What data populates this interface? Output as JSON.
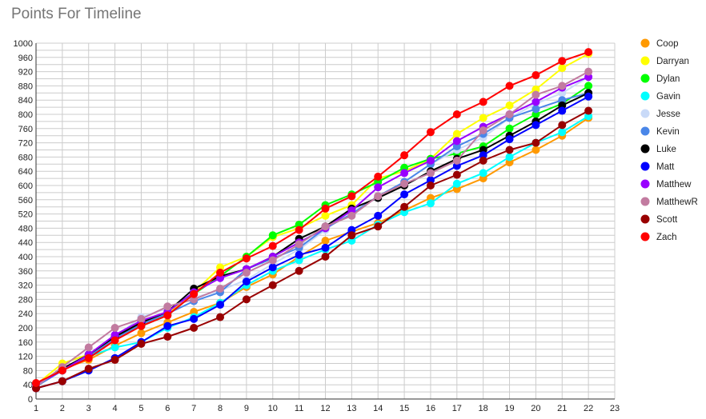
{
  "chart_data": {
    "type": "line",
    "title": "Points For Timeline",
    "xlabel": "",
    "ylabel": "",
    "xlim": [
      1,
      23
    ],
    "ylim": [
      0,
      1000
    ],
    "x_ticks": [
      1,
      2,
      3,
      4,
      5,
      6,
      7,
      8,
      9,
      10,
      11,
      12,
      13,
      14,
      15,
      16,
      17,
      18,
      19,
      20,
      21,
      22,
      23
    ],
    "y_ticks": [
      0,
      20,
      40,
      60,
      80,
      100,
      120,
      140,
      160,
      180,
      200,
      220,
      240,
      260,
      280,
      300,
      320,
      340,
      360,
      380,
      400,
      420,
      440,
      460,
      480,
      500,
      520,
      540,
      560,
      580,
      600,
      620,
      640,
      660,
      680,
      700,
      720,
      740,
      760,
      780,
      800,
      820,
      840,
      860,
      880,
      900,
      920,
      940,
      960,
      980,
      1000
    ],
    "y_tick_labels": [
      "0",
      "",
      "40",
      "",
      "80",
      "",
      "120",
      "",
      "160",
      "",
      "200",
      "",
      "240",
      "",
      "280",
      "",
      "320",
      "",
      "360",
      "",
      "400",
      "",
      "440",
      "",
      "480",
      "",
      "520",
      "",
      "560",
      "",
      "600",
      "",
      "640",
      "",
      "680",
      "",
      "720",
      "",
      "760",
      "",
      "800",
      "",
      "840",
      "",
      "880",
      "",
      "920",
      "",
      "960",
      "",
      "1000"
    ],
    "grid": true,
    "legend_position": "right",
    "x": [
      1,
      2,
      3,
      4,
      5,
      6,
      7,
      8,
      9,
      10,
      11,
      12,
      13,
      14,
      15,
      16,
      17,
      18,
      19,
      20,
      21,
      22
    ],
    "series": [
      {
        "name": "Coop",
        "color": "#ff9900",
        "values": [
          35,
          85,
          110,
          150,
          185,
          215,
          245,
          270,
          315,
          350,
          400,
          445,
          470,
          495,
          530,
          565,
          590,
          620,
          665,
          700,
          740,
          790
        ]
      },
      {
        "name": "Darryan",
        "color": "#ffff00",
        "values": [
          40,
          100,
          125,
          175,
          210,
          240,
          300,
          370,
          400,
          455,
          480,
          515,
          545,
          620,
          640,
          675,
          745,
          790,
          825,
          870,
          930,
          970
        ]
      },
      {
        "name": "Dylan",
        "color": "#00ff00",
        "values": [
          40,
          80,
          125,
          175,
          205,
          235,
          295,
          345,
          400,
          460,
          490,
          545,
          575,
          610,
          650,
          675,
          690,
          710,
          760,
          800,
          830,
          880
        ]
      },
      {
        "name": "Gavin",
        "color": "#00ffff",
        "values": [
          40,
          80,
          120,
          145,
          160,
          200,
          230,
          270,
          320,
          360,
          390,
          420,
          445,
          490,
          525,
          550,
          605,
          635,
          680,
          720,
          750,
          795
        ]
      },
      {
        "name": "Jesse",
        "color": "#c9daf8",
        "values": [
          40,
          80,
          120,
          175,
          230,
          255,
          285,
          305,
          335,
          380,
          420,
          475,
          530,
          565,
          610,
          660,
          700,
          735,
          790,
          830,
          860,
          905
        ]
      },
      {
        "name": "Kevin",
        "color": "#4a86e8",
        "values": [
          35,
          80,
          120,
          170,
          210,
          240,
          275,
          300,
          365,
          395,
          425,
          480,
          520,
          570,
          610,
          660,
          710,
          745,
          790,
          815,
          840,
          860
        ]
      },
      {
        "name": "Luke",
        "color": "#000000",
        "values": [
          40,
          85,
          125,
          175,
          215,
          245,
          310,
          345,
          365,
          400,
          450,
          485,
          535,
          565,
          600,
          640,
          675,
          700,
          740,
          780,
          825,
          860
        ]
      },
      {
        "name": "Matt",
        "color": "#0000ff",
        "values": [
          30,
          50,
          80,
          115,
          160,
          205,
          225,
          265,
          330,
          370,
          405,
          425,
          475,
          515,
          575,
          615,
          655,
          685,
          730,
          770,
          810,
          850
        ]
      },
      {
        "name": "Matthew",
        "color": "#9900ff",
        "values": [
          40,
          80,
          125,
          180,
          220,
          245,
          300,
          340,
          365,
          400,
          440,
          480,
          530,
          595,
          635,
          670,
          725,
          765,
          800,
          835,
          875,
          905
        ]
      },
      {
        "name": "MatthewR",
        "color": "#c27ba0",
        "values": [
          35,
          90,
          145,
          200,
          225,
          260,
          280,
          310,
          355,
          390,
          435,
          485,
          515,
          570,
          605,
          635,
          670,
          755,
          800,
          855,
          880,
          920
        ]
      },
      {
        "name": "Scott",
        "color": "#990000",
        "values": [
          30,
          50,
          85,
          110,
          155,
          175,
          200,
          230,
          280,
          320,
          360,
          400,
          460,
          485,
          540,
          600,
          630,
          670,
          700,
          720,
          770,
          810
        ]
      },
      {
        "name": "Zach",
        "color": "#ff0000",
        "values": [
          45,
          80,
          115,
          165,
          205,
          235,
          295,
          355,
          395,
          430,
          475,
          535,
          570,
          625,
          685,
          750,
          800,
          835,
          880,
          910,
          950,
          975
        ]
      }
    ]
  }
}
